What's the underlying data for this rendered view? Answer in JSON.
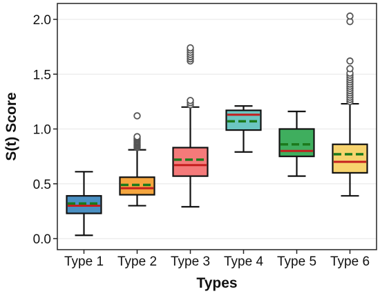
{
  "chart_data": {
    "type": "box",
    "xlabel": "Types",
    "ylabel": "S(t) Score",
    "ylim": [
      -0.05,
      2.12
    ],
    "yticks": [
      "0.0",
      "0.5",
      "1.0",
      "1.5",
      "2.0"
    ],
    "grid": "horizontal",
    "categories": [
      "Type 1",
      "Type 2",
      "Type 3",
      "Type 4",
      "Type 5",
      "Type 6"
    ],
    "colors": [
      "#4a8fc2",
      "#f5a63f",
      "#f47a7a",
      "#6cc6c2",
      "#3fae5e",
      "#f7d36e"
    ],
    "median_color": "#c41e1e",
    "mean_color": "#1c7a1c",
    "boxes": [
      {
        "whisker_low": 0.03,
        "q1": 0.23,
        "median": 0.3,
        "mean": 0.32,
        "q3": 0.39,
        "whisker_high": 0.61,
        "outliers": []
      },
      {
        "whisker_low": 0.3,
        "q1": 0.4,
        "median": 0.46,
        "mean": 0.49,
        "q3": 0.56,
        "whisker_high": 0.81,
        "outliers": [
          0.83,
          0.84,
          0.85,
          0.86,
          0.87,
          0.88,
          0.89,
          0.9,
          0.91,
          0.92,
          0.93,
          1.12
        ]
      },
      {
        "whisker_low": 0.29,
        "q1": 0.57,
        "median": 0.67,
        "mean": 0.72,
        "q3": 0.83,
        "whisker_high": 1.2,
        "outliers": [
          1.22,
          1.24,
          1.26,
          1.62,
          1.64,
          1.66,
          1.68,
          1.7,
          1.72,
          1.74
        ]
      },
      {
        "whisker_low": 0.79,
        "q1": 0.99,
        "median": 1.13,
        "mean": 1.07,
        "q3": 1.17,
        "whisker_high": 1.21,
        "outliers": []
      },
      {
        "whisker_low": 0.57,
        "q1": 0.75,
        "median": 0.8,
        "mean": 0.86,
        "q3": 1.0,
        "whisker_high": 1.16,
        "outliers": []
      },
      {
        "whisker_low": 0.39,
        "q1": 0.6,
        "median": 0.7,
        "mean": 0.77,
        "q3": 0.86,
        "whisker_high": 1.23,
        "outliers": [
          1.25,
          1.27,
          1.29,
          1.31,
          1.33,
          1.35,
          1.37,
          1.39,
          1.41,
          1.43,
          1.45,
          1.47,
          1.49,
          1.51,
          1.55,
          1.62,
          1.98,
          2.03
        ]
      }
    ]
  }
}
